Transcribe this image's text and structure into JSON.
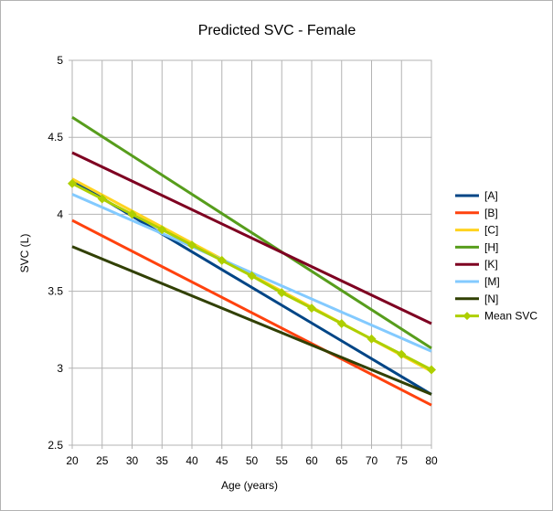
{
  "chart_data": {
    "type": "line",
    "title": "Predicted SVC - Female",
    "xlabel": "Age (years)",
    "ylabel": "SVC (L)",
    "xlim": [
      20,
      80
    ],
    "ylim": [
      2.5,
      5
    ],
    "x_ticks": [
      "20",
      "25",
      "30",
      "35",
      "40",
      "45",
      "50",
      "55",
      "60",
      "65",
      "70",
      "75",
      "80"
    ],
    "y_ticks": [
      "5",
      "4.5",
      "4",
      "3.5",
      "3",
      "2.5"
    ],
    "grid": true,
    "legend_position": "right",
    "series": [
      {
        "name": "[A]",
        "color": "#004586",
        "x": [
          20,
          80
        ],
        "y": [
          4.22,
          2.83
        ]
      },
      {
        "name": "[B]",
        "color": "#ff420e",
        "x": [
          20,
          80
        ],
        "y": [
          3.96,
          2.76
        ]
      },
      {
        "name": "[C]",
        "color": "#ffd320",
        "x": [
          20,
          80
        ],
        "y": [
          4.23,
          2.98
        ]
      },
      {
        "name": "[H]",
        "color": "#579d1c",
        "x": [
          20,
          80
        ],
        "y": [
          4.63,
          3.13
        ]
      },
      {
        "name": "[K]",
        "color": "#7e0021",
        "x": [
          20,
          80
        ],
        "y": [
          4.4,
          3.29
        ]
      },
      {
        "name": "[M]",
        "color": "#83caff",
        "x": [
          20,
          80
        ],
        "y": [
          4.13,
          3.11
        ]
      },
      {
        "name": "[N]",
        "color": "#314004",
        "x": [
          20,
          80
        ],
        "y": [
          3.79,
          2.83
        ]
      },
      {
        "name": "Mean SVC",
        "color": "#aecf00",
        "markers": true,
        "x": [
          20,
          25,
          30,
          35,
          40,
          45,
          50,
          55,
          60,
          65,
          70,
          75,
          80
        ],
        "y": [
          4.2,
          4.1,
          4.0,
          3.9,
          3.8,
          3.7,
          3.6,
          3.49,
          3.39,
          3.29,
          3.19,
          3.09,
          2.99
        ]
      }
    ]
  }
}
